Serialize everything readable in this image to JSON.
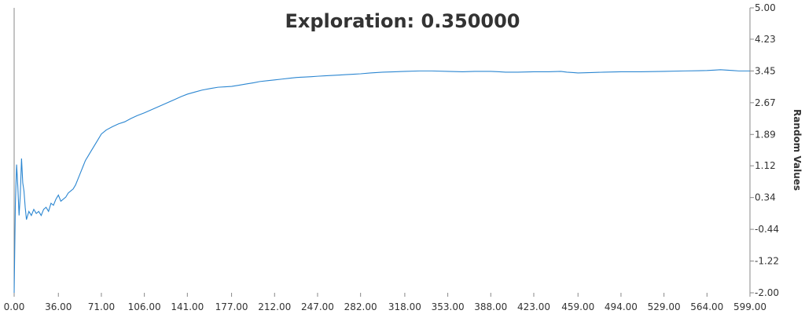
{
  "chart_data": {
    "type": "line",
    "title": "Exploration: 0.350000",
    "xlabel": "",
    "ylabel": "Random Values",
    "xlim": [
      0,
      599
    ],
    "ylim": [
      -2.0,
      5.0
    ],
    "x_ticks": [
      "0.00",
      "36.00",
      "71.00",
      "106.00",
      "141.00",
      "177.00",
      "212.00",
      "247.00",
      "282.00",
      "318.00",
      "353.00",
      "388.00",
      "423.00",
      "459.00",
      "494.00",
      "529.00",
      "564.00",
      "599.00"
    ],
    "y_ticks": [
      "5.00",
      "4.23",
      "3.45",
      "2.67",
      "1.89",
      "1.12",
      "0.34",
      "-0.44",
      "-1.22",
      "-2.00"
    ],
    "y_axis_side": "right",
    "grid": false,
    "colors": {
      "line": "#2b86d1",
      "text": "#333333",
      "axis": "#888888"
    },
    "series": [
      {
        "x": [
          0,
          1,
          2,
          3,
          4,
          5,
          6,
          7,
          8,
          9,
          10,
          12,
          14,
          16,
          18,
          20,
          22,
          24,
          26,
          28,
          30,
          32,
          34,
          36,
          38,
          40,
          42,
          44,
          46,
          48,
          50,
          52,
          54,
          56,
          58,
          60,
          62,
          65,
          68,
          71,
          75,
          80,
          85,
          90,
          95,
          100,
          106,
          112,
          118,
          124,
          130,
          136,
          141,
          147,
          153,
          160,
          166,
          172,
          177,
          183,
          189,
          195,
          200,
          206,
          212,
          218,
          224,
          230,
          236,
          242,
          247,
          253,
          259,
          265,
          270,
          276,
          282,
          290,
          300,
          310,
          318,
          330,
          340,
          353,
          365,
          375,
          388,
          395,
          400,
          410,
          423,
          435,
          445,
          450,
          455,
          459,
          470,
          480,
          494,
          510,
          529,
          545,
          564,
          570,
          575,
          580,
          585,
          590,
          599
        ],
        "y": [
          -2.0,
          0.2,
          1.15,
          0.6,
          -0.1,
          0.4,
          1.3,
          0.7,
          0.5,
          0.1,
          -0.2,
          0.0,
          -0.1,
          0.05,
          -0.05,
          0.0,
          -0.1,
          0.05,
          0.1,
          0.0,
          0.2,
          0.15,
          0.3,
          0.4,
          0.25,
          0.3,
          0.35,
          0.45,
          0.5,
          0.55,
          0.65,
          0.8,
          0.95,
          1.1,
          1.25,
          1.35,
          1.45,
          1.6,
          1.75,
          1.9,
          2.0,
          2.08,
          2.15,
          2.2,
          2.28,
          2.35,
          2.42,
          2.5,
          2.58,
          2.66,
          2.74,
          2.82,
          2.88,
          2.93,
          2.98,
          3.02,
          3.05,
          3.06,
          3.07,
          3.1,
          3.13,
          3.16,
          3.19,
          3.21,
          3.23,
          3.25,
          3.27,
          3.29,
          3.3,
          3.31,
          3.32,
          3.33,
          3.34,
          3.35,
          3.36,
          3.37,
          3.38,
          3.4,
          3.42,
          3.43,
          3.44,
          3.45,
          3.45,
          3.44,
          3.43,
          3.44,
          3.44,
          3.43,
          3.42,
          3.42,
          3.43,
          3.43,
          3.44,
          3.42,
          3.41,
          3.4,
          3.41,
          3.42,
          3.43,
          3.43,
          3.44,
          3.45,
          3.46,
          3.47,
          3.48,
          3.47,
          3.46,
          3.45,
          3.45
        ]
      }
    ]
  }
}
